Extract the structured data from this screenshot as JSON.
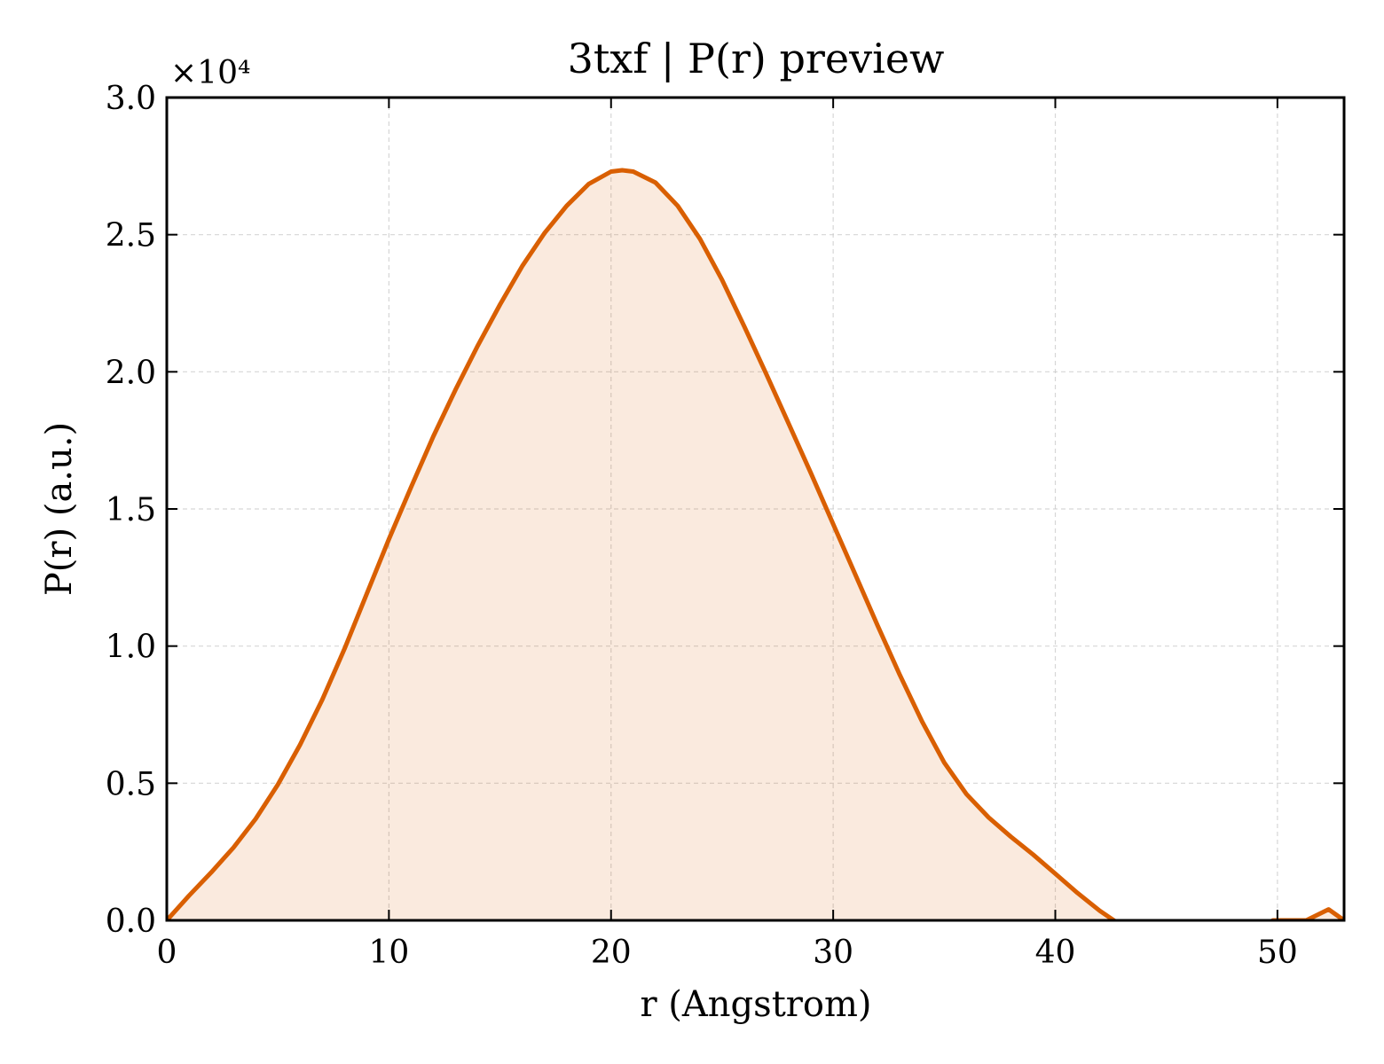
{
  "chart_data": {
    "type": "area",
    "title": "3txf | P(r) preview",
    "xlabel": "r (Angstrom)",
    "ylabel": "P(r) (a.u.)",
    "y_offset_label": "×10⁴",
    "xlim": [
      0,
      53
    ],
    "ylim": [
      0,
      30000
    ],
    "xticks": [
      0,
      10,
      20,
      30,
      40,
      50
    ],
    "xtick_labels": [
      "0",
      "10",
      "20",
      "30",
      "40",
      "50"
    ],
    "yticks": [
      0,
      5000,
      10000,
      15000,
      20000,
      25000,
      30000
    ],
    "ytick_labels": [
      "0.0",
      "0.5",
      "1.0",
      "1.5",
      "2.0",
      "2.5",
      "3.0"
    ],
    "grid": true,
    "colors": {
      "line": "#d95f02",
      "fill": "#d95f02"
    },
    "series": [
      {
        "x": [
          0,
          1,
          2,
          3,
          4,
          5,
          6,
          7,
          8,
          9,
          10,
          11,
          12,
          13,
          14,
          15,
          16,
          17,
          18,
          19,
          20,
          20.5,
          21,
          22,
          23,
          24,
          25,
          26,
          27,
          28,
          29,
          30,
          31,
          32,
          33,
          34,
          35,
          36,
          37,
          38,
          39,
          40,
          41,
          42,
          43,
          44,
          45,
          46,
          47,
          48,
          49,
          49.8,
          50.5,
          51.3,
          52.3,
          53
        ],
        "y": [
          0,
          900,
          1750,
          2650,
          3700,
          4950,
          6400,
          8050,
          9900,
          11900,
          13900,
          15800,
          17650,
          19350,
          20950,
          22450,
          23850,
          25050,
          26050,
          26850,
          27300,
          27350,
          27300,
          26900,
          26050,
          24850,
          23350,
          21650,
          19900,
          18100,
          16300,
          14450,
          12600,
          10750,
          8950,
          7250,
          5750,
          4600,
          3750,
          3050,
          2400,
          1700,
          1000,
          350,
          -200,
          -550,
          -750,
          -800,
          -800,
          -700,
          -350,
          0,
          0,
          0,
          400,
          0
        ]
      }
    ]
  }
}
